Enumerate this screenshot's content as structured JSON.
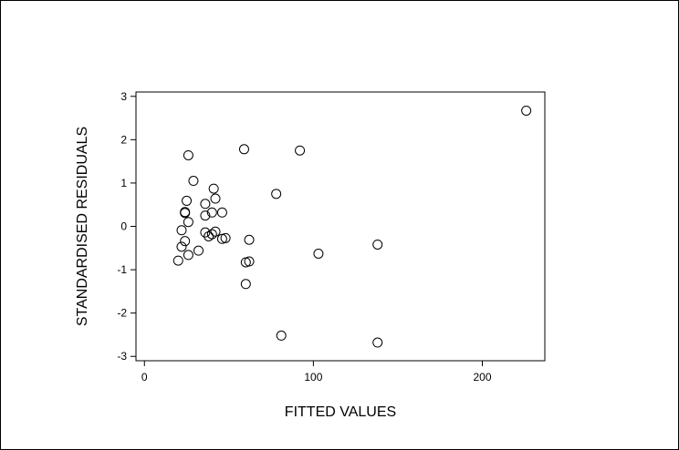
{
  "chart_data": {
    "type": "scatter",
    "title": "",
    "xlabel": "FITTED VALUES",
    "ylabel": "STANDARDISED RESIDUALS",
    "xlim": [
      -5,
      237
    ],
    "ylim": [
      -3.1,
      3.1
    ],
    "xticks": [
      0,
      100,
      200
    ],
    "yticks": [
      -3,
      -2,
      -1,
      0,
      1,
      2,
      3
    ],
    "grid": false,
    "legend": "none",
    "marker": "open-circle",
    "points": [
      {
        "x": 20,
        "y": -0.79
      },
      {
        "x": 22,
        "y": -0.09
      },
      {
        "x": 22,
        "y": -0.47
      },
      {
        "x": 24,
        "y": 0.33
      },
      {
        "x": 24,
        "y": 0.31
      },
      {
        "x": 24,
        "y": -0.34
      },
      {
        "x": 25,
        "y": 0.59
      },
      {
        "x": 26,
        "y": 1.64
      },
      {
        "x": 26,
        "y": 0.1
      },
      {
        "x": 26,
        "y": -0.66
      },
      {
        "x": 29,
        "y": 1.05
      },
      {
        "x": 32,
        "y": -0.56
      },
      {
        "x": 36,
        "y": 0.52
      },
      {
        "x": 36,
        "y": 0.25
      },
      {
        "x": 36,
        "y": -0.14
      },
      {
        "x": 38,
        "y": -0.23
      },
      {
        "x": 40,
        "y": 0.32
      },
      {
        "x": 40,
        "y": -0.18
      },
      {
        "x": 41,
        "y": 0.87
      },
      {
        "x": 42,
        "y": 0.64
      },
      {
        "x": 42,
        "y": -0.12
      },
      {
        "x": 46,
        "y": 0.32
      },
      {
        "x": 46,
        "y": -0.29
      },
      {
        "x": 48,
        "y": -0.27
      },
      {
        "x": 59,
        "y": 1.78
      },
      {
        "x": 60,
        "y": -0.83
      },
      {
        "x": 60,
        "y": -1.33
      },
      {
        "x": 62,
        "y": -0.31
      },
      {
        "x": 62,
        "y": -0.81
      },
      {
        "x": 78,
        "y": 0.75
      },
      {
        "x": 81,
        "y": -2.52
      },
      {
        "x": 92,
        "y": 1.75
      },
      {
        "x": 103,
        "y": -0.63
      },
      {
        "x": 138,
        "y": -0.42
      },
      {
        "x": 138,
        "y": -2.68
      },
      {
        "x": 226,
        "y": 2.67
      }
    ]
  }
}
